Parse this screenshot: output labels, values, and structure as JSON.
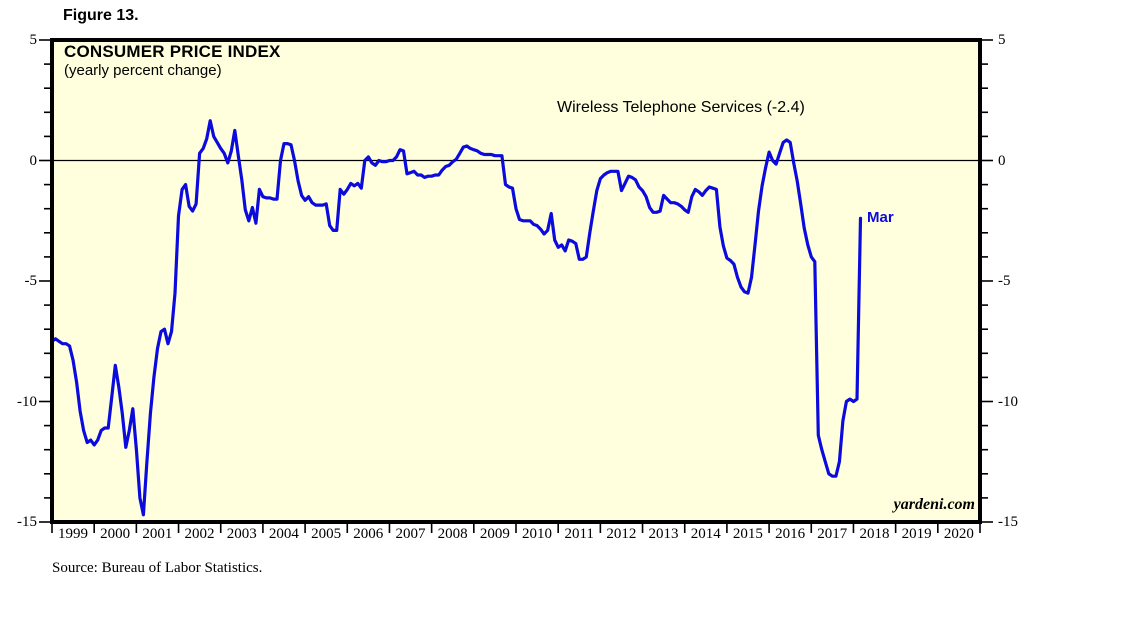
{
  "figure_label": "Figure 13.",
  "chart": {
    "title": "CONSUMER PRICE INDEX",
    "subtitle": "(yearly percent change)",
    "series_label": "Wireless Telephone Services (-2.4)",
    "last_point_label": "Mar",
    "watermark": "yardeni.com"
  },
  "source_note": "Source: Bureau of Labor Statistics.",
  "colors": {
    "line": "#0b0bdd",
    "plot_background": "#ffffde",
    "axis": "#000000",
    "annotation_blue": "#0b0bdd",
    "page_background": "#ffffff"
  },
  "chart_data": {
    "type": "line",
    "title": "CONSUMER PRICE INDEX",
    "subtitle": "(yearly percent change)",
    "series_name": "Wireless Telephone Services",
    "latest_value": -2.4,
    "latest_point_label": "Mar",
    "x_unit": "month",
    "x_start": "1999-01",
    "x_end": "2018-03",
    "x_axis_span_years": 22,
    "x_year_labels": [
      "1999",
      "2000",
      "2001",
      "2002",
      "2003",
      "2004",
      "2005",
      "2006",
      "2007",
      "2008",
      "2009",
      "2010",
      "2011",
      "2012",
      "2013",
      "2014",
      "2015",
      "2016",
      "2017",
      "2018",
      "2019",
      "2020"
    ],
    "ylim": [
      -15,
      5
    ],
    "y_tick_values": [
      5,
      0,
      -5,
      -10,
      -15
    ],
    "y_tick_labels": [
      "5",
      "0",
      "-5",
      "-10",
      "-15"
    ],
    "y_minor_tick_step": 1,
    "grid": "none",
    "zero_line": true,
    "legend_position": "inside-top-right",
    "values_monthly": [
      -7.5,
      -7.4,
      -7.5,
      -7.6,
      -7.6,
      -7.7,
      -8.3,
      -9.2,
      -10.4,
      -11.2,
      -11.7,
      -11.6,
      -11.8,
      -11.6,
      -11.2,
      -11.1,
      -11.1,
      -9.8,
      -8.5,
      -9.4,
      -10.5,
      -11.9,
      -11.2,
      -10.3,
      -12.0,
      -14.0,
      -14.7,
      -12.5,
      -10.5,
      -9.0,
      -7.8,
      -7.1,
      -7.0,
      -7.6,
      -7.1,
      -5.5,
      -2.3,
      -1.2,
      -1.0,
      -1.9,
      -2.1,
      -1.8,
      0.3,
      0.5,
      0.9,
      1.65,
      1.0,
      0.75,
      0.5,
      0.3,
      -0.1,
      0.4,
      1.25,
      0.2,
      -0.8,
      -2.05,
      -2.5,
      -1.95,
      -2.6,
      -1.2,
      -1.5,
      -1.55,
      -1.55,
      -1.6,
      -1.6,
      0.0,
      0.7,
      0.7,
      0.65,
      0.0,
      -0.85,
      -1.45,
      -1.65,
      -1.5,
      -1.75,
      -1.85,
      -1.85,
      -1.85,
      -1.8,
      -2.7,
      -2.9,
      -2.9,
      -1.2,
      -1.4,
      -1.2,
      -0.95,
      -1.05,
      -0.95,
      -1.15,
      0.0,
      0.15,
      -0.1,
      -0.2,
      0.0,
      -0.05,
      -0.05,
      0.0,
      0.0,
      0.15,
      0.45,
      0.4,
      -0.55,
      -0.5,
      -0.45,
      -0.6,
      -0.6,
      -0.7,
      -0.65,
      -0.65,
      -0.6,
      -0.6,
      -0.4,
      -0.25,
      -0.2,
      -0.05,
      0.05,
      0.3,
      0.55,
      0.6,
      0.5,
      0.45,
      0.4,
      0.3,
      0.25,
      0.25,
      0.25,
      0.2,
      0.2,
      0.2,
      -1.0,
      -1.1,
      -1.15,
      -2.0,
      -2.45,
      -2.5,
      -2.5,
      -2.5,
      -2.65,
      -2.7,
      -2.85,
      -3.05,
      -2.9,
      -2.2,
      -3.3,
      -3.6,
      -3.5,
      -3.75,
      -3.3,
      -3.35,
      -3.45,
      -4.1,
      -4.1,
      -4.0,
      -3.0,
      -2.1,
      -1.25,
      -0.75,
      -0.6,
      -0.5,
      -0.45,
      -0.45,
      -0.45,
      -1.25,
      -0.95,
      -0.65,
      -0.7,
      -0.8,
      -1.1,
      -1.25,
      -1.5,
      -1.95,
      -2.15,
      -2.15,
      -2.1,
      -1.45,
      -1.6,
      -1.75,
      -1.75,
      -1.8,
      -1.9,
      -2.05,
      -2.15,
      -1.5,
      -1.2,
      -1.3,
      -1.45,
      -1.25,
      -1.1,
      -1.15,
      -1.2,
      -2.75,
      -3.55,
      -4.05,
      -4.15,
      -4.3,
      -4.85,
      -5.25,
      -5.45,
      -5.5,
      -4.85,
      -3.5,
      -2.1,
      -1.05,
      -0.3,
      0.35,
      0.0,
      -0.15,
      0.3,
      0.75,
      0.85,
      0.75,
      -0.1,
      -0.85,
      -1.8,
      -2.8,
      -3.5,
      -4.0,
      -4.2,
      -11.4,
      -12.0,
      -12.5,
      -13.0,
      -13.1,
      -13.1,
      -12.5,
      -10.8,
      -10.0,
      -9.9,
      -10.0,
      -9.9,
      -2.4
    ]
  }
}
